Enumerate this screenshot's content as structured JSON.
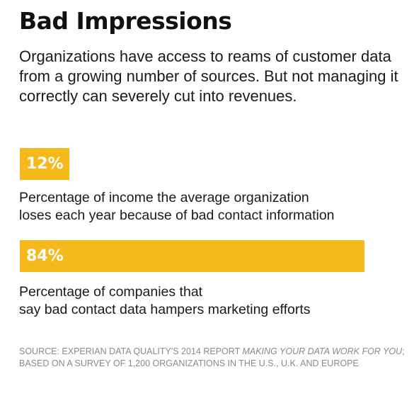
{
  "title": "Bad Impressions",
  "intro": "Organizations have access to reams of customer data from a growing number of sources. But not managing it correctly can severely cut into revenues.",
  "chart_data": {
    "type": "bar",
    "orientation": "horizontal",
    "categories": [
      "Percentage of income the average organization loses each year because of bad contact information",
      "Percentage of companies that say bad contact data hampers marketing efforts"
    ],
    "values": [
      12,
      84
    ],
    "value_labels": [
      "12%",
      "84%"
    ],
    "xlim": [
      0,
      100
    ],
    "bar_color": "#f6b91c",
    "grid": false
  },
  "source": {
    "prefix": "Source: Experian Data Quality's 2014 report ",
    "report_title": "Making Your Data Work for You",
    "suffix": "; based on a survey of 1,200 organizations in the U.S., U.K. and Europe"
  }
}
